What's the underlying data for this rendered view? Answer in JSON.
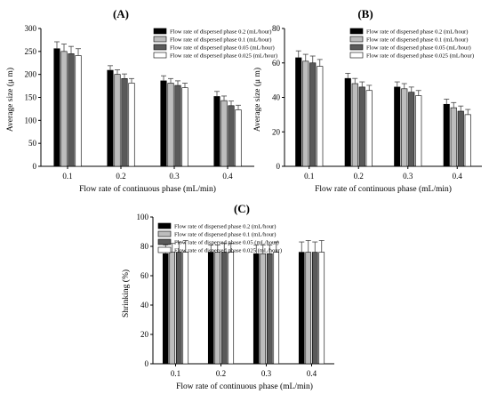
{
  "figure_colors": {
    "series_fills": [
      "#000000",
      "#bdbdbd",
      "#5a5a5a",
      "#ffffff"
    ],
    "stroke": "#000000"
  },
  "chart_data": [
    {
      "panel": "(A)",
      "type": "bar",
      "categories": [
        "0.1",
        "0.2",
        "0.3",
        "0.4"
      ],
      "xlabel": "Flow rate of continuous phase (mL/min)",
      "ylabel": "Average size (μ m)",
      "ylim": [
        0,
        300
      ],
      "yticks": [
        "0",
        "50",
        "100",
        "150",
        "200",
        "250",
        "300"
      ],
      "legend_position": "top-right",
      "series": [
        {
          "name": "Flow rate of dispersed phase 0.2 (mL/hour)",
          "values": [
            256,
            209,
            186,
            152
          ],
          "errors": [
            15,
            10,
            11,
            11
          ]
        },
        {
          "name": "Flow rate of dispersed phase 0.1 (mL/hour)",
          "values": [
            250,
            200,
            181,
            143
          ],
          "errors": [
            16,
            10,
            10,
            10
          ]
        },
        {
          "name": "Flow rate of dispersed phase 0.05 (mL/hour)",
          "values": [
            245,
            191,
            176,
            132
          ],
          "errors": [
            16,
            10,
            10,
            10
          ]
        },
        {
          "name": "Flow rate of dispersed phase 0.025 (mL/hour)",
          "values": [
            241,
            181,
            171,
            123
          ],
          "errors": [
            15,
            10,
            10,
            10
          ]
        }
      ]
    },
    {
      "panel": "(B)",
      "type": "bar",
      "categories": [
        "0.1",
        "0.2",
        "0.3",
        "0.4"
      ],
      "xlabel": "Flow rate of continuous phase (mL/min)",
      "ylabel": "Average size (μ m)",
      "ylim": [
        0,
        80
      ],
      "yticks": [
        "0",
        "20",
        "40",
        "60",
        "80"
      ],
      "legend_position": "top-right",
      "series": [
        {
          "name": "Flow rate of dispersed phase 0.2 (mL/hour)",
          "values": [
            63,
            51,
            46,
            36
          ],
          "errors": [
            4,
            3,
            3,
            3
          ]
        },
        {
          "name": "Flow rate of dispersed phase 0.1 (mL/hour)",
          "values": [
            61,
            48,
            45,
            34
          ],
          "errors": [
            4,
            3,
            3,
            3
          ]
        },
        {
          "name": "Flow rate of dispersed phase 0.05 (mL/hour)",
          "values": [
            60,
            46,
            43,
            32
          ],
          "errors": [
            4,
            3,
            3,
            3
          ]
        },
        {
          "name": "Flow rate of dispersed phase 0.025 (mL/hour)",
          "values": [
            58,
            44,
            41,
            30
          ],
          "errors": [
            4,
            3,
            3,
            3
          ]
        }
      ]
    },
    {
      "panel": "(C)",
      "type": "bar",
      "categories": [
        "0.1",
        "0.2",
        "0.3",
        "0.4"
      ],
      "xlabel": "Flow rate of continuous phase (mL/min)",
      "ylabel": "Shrinking (%)",
      "ylim": [
        0,
        100
      ],
      "yticks": [
        "0",
        "20",
        "40",
        "60",
        "80",
        "100"
      ],
      "legend_position": "top-left",
      "series": [
        {
          "name": "Flow rate of dispersed phase 0.2 (mL/hour)",
          "values": [
            75,
            76,
            75,
            76
          ],
          "errors": [
            6,
            5,
            6,
            7
          ]
        },
        {
          "name": "Flow rate of dispersed phase 0.1 (mL/hour)",
          "values": [
            76,
            76,
            75,
            76
          ],
          "errors": [
            6,
            5,
            6,
            8
          ]
        },
        {
          "name": "Flow rate of dispersed phase 0.05 (mL/hour)",
          "values": [
            76,
            76,
            75,
            76
          ],
          "errors": [
            7,
            6,
            6,
            7
          ]
        },
        {
          "name": "Flow rate of dispersed phase 0.025 (mL/hour)",
          "values": [
            76,
            76,
            76,
            76
          ],
          "errors": [
            8,
            6,
            7,
            8
          ]
        }
      ]
    }
  ]
}
